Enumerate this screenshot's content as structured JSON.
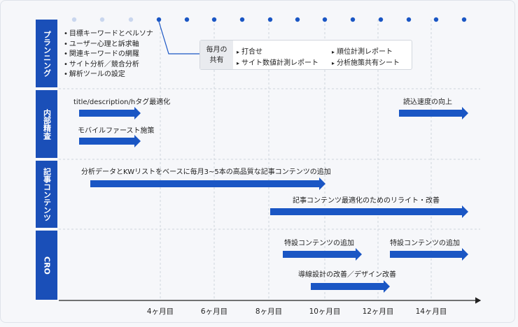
{
  "sections": [
    {
      "label": "プランニング"
    },
    {
      "label": "内部精査"
    },
    {
      "label": "記事コンテンツ"
    },
    {
      "label": "CRO"
    }
  ],
  "planning_items": [
    "目標キーワードとペルソナ",
    "ユーザー心理と訴求軸",
    "関連キーワードの網羅",
    "サイト分析／競合分析",
    "解析ツールの設定"
  ],
  "monthly_box": {
    "head_line1": "毎月の",
    "head_line2": "共有",
    "items": [
      "打合せ",
      "サイト数値計測レポート",
      "順位計測レポート",
      "分析施策共有シート"
    ]
  },
  "bars": {
    "title_tag": "title/description/hタグ最適化",
    "mobile_first": "モバイルファースト施策",
    "read_speed": "読込速度の向上",
    "article_add": "分析データとKWリストをベースに毎月3~5本の高品質な記事コンテンツの追加",
    "rewrite": "記事コンテンツ最適化のためのリライト・改善",
    "special1": "特設コンテンツの追加",
    "special2": "特設コンテンツの追加",
    "flow": "導線設計の改善／デザイン改善"
  },
  "axis_ticks": [
    "4ヶ月目",
    "6ヶ月目",
    "8ヶ月目",
    "10ヶ月目",
    "12ヶ月目",
    "14ヶ月目"
  ],
  "colors": {
    "primary": "#1a4fb8",
    "bar": "#1a56c4",
    "dot_light": "#c9d6ee",
    "grid": "#cfd4dc"
  }
}
